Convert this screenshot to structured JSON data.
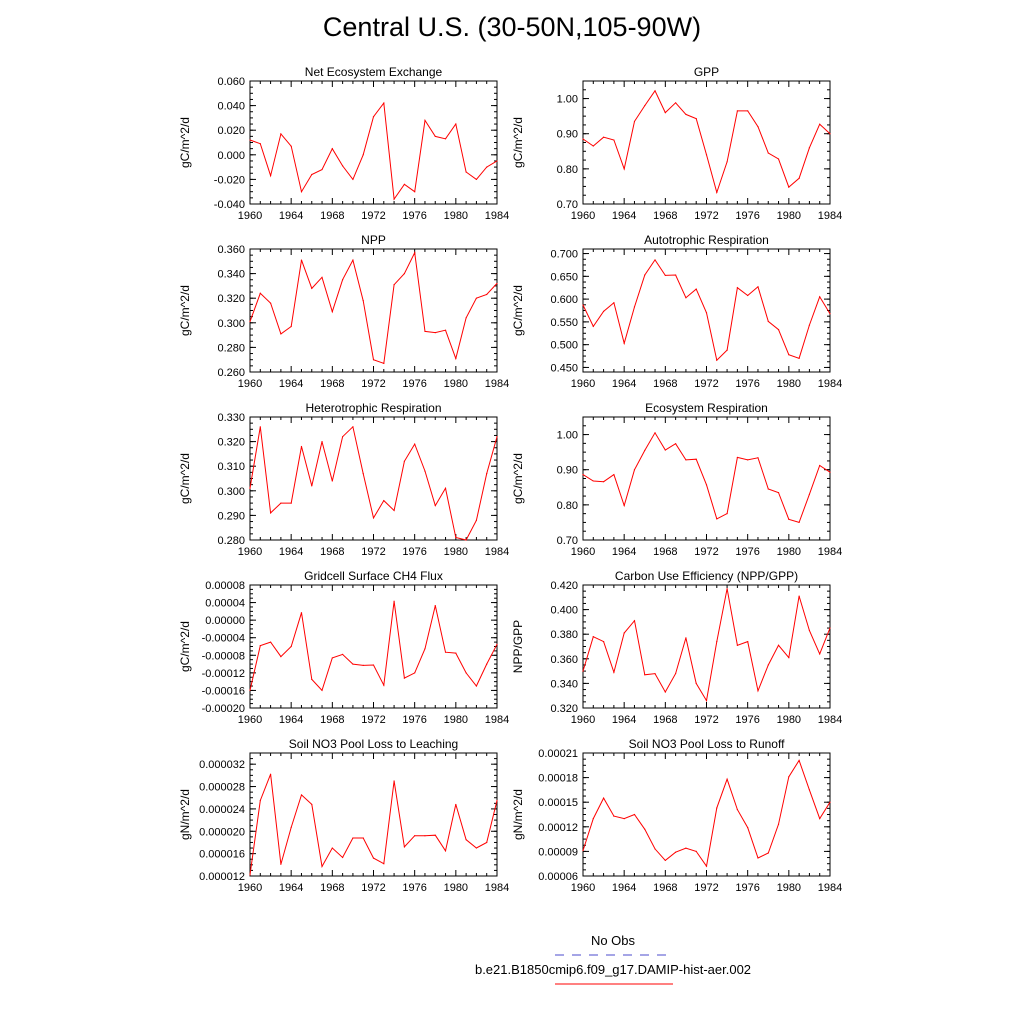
{
  "figure": {
    "title": "Central U.S. (30-50N,105-90W)",
    "line_color": "#ff0000",
    "obs_color": "#4b4bcc"
  },
  "legend": {
    "obs_label": "No Obs",
    "case_label": "b.e21.B1850cmip6.f09_g17.DAMIP-hist-aer.002"
  },
  "chart_data": [
    {
      "type": "line",
      "title": "Net Ecosystem Exchange",
      "ylabel": "gC/m^2/d",
      "xlim": [
        1960,
        1984
      ],
      "xticks": [
        "1960",
        "1964",
        "1968",
        "1972",
        "1976",
        "1980",
        "1984"
      ],
      "ylim": [
        -0.04,
        0.06
      ],
      "yticks": [
        "-0.040",
        "-0.020",
        "0.000",
        "0.020",
        "0.040",
        "0.060"
      ],
      "x": [
        1960,
        1961,
        1962,
        1963,
        1964,
        1965,
        1966,
        1967,
        1968,
        1969,
        1970,
        1971,
        1972,
        1973,
        1974,
        1975,
        1976,
        1977,
        1978,
        1979,
        1980,
        1981,
        1982,
        1983,
        1984
      ],
      "series": [
        {
          "values": [
            0.012,
            0.009,
            -0.017,
            0.017,
            0.007,
            -0.03,
            -0.016,
            -0.012,
            0.005,
            -0.009,
            -0.02,
            0.0,
            0.031,
            0.042,
            -0.036,
            -0.024,
            -0.03,
            0.028,
            0.015,
            0.013,
            0.025,
            -0.014,
            -0.02,
            -0.01,
            -0.005
          ]
        }
      ]
    },
    {
      "type": "line",
      "title": "GPP",
      "ylabel": "gC/m^2/d",
      "xlim": [
        1960,
        1984
      ],
      "xticks": [
        "1960",
        "1964",
        "1968",
        "1972",
        "1976",
        "1980",
        "1984"
      ],
      "ylim": [
        0.7,
        1.05
      ],
      "yticks": [
        "0.70",
        "0.80",
        "0.90",
        "1.00"
      ],
      "x": [
        1960,
        1961,
        1962,
        1963,
        1964,
        1965,
        1966,
        1967,
        1968,
        1969,
        1970,
        1971,
        1972,
        1973,
        1974,
        1975,
        1976,
        1977,
        1978,
        1979,
        1980,
        1981,
        1982,
        1983,
        1984
      ],
      "series": [
        {
          "values": [
            0.885,
            0.865,
            0.89,
            0.882,
            0.8,
            0.935,
            0.98,
            1.022,
            0.96,
            0.988,
            0.955,
            0.943,
            0.84,
            0.733,
            0.82,
            0.965,
            0.965,
            0.92,
            0.845,
            0.828,
            0.748,
            0.773,
            0.86,
            0.927,
            0.9
          ]
        }
      ]
    },
    {
      "type": "line",
      "title": "NPP",
      "ylabel": "gC/m^2/d",
      "xlim": [
        1960,
        1984
      ],
      "xticks": [
        "1960",
        "1964",
        "1968",
        "1972",
        "1976",
        "1980",
        "1984"
      ],
      "ylim": [
        0.26,
        0.36
      ],
      "yticks": [
        "0.260",
        "0.280",
        "0.300",
        "0.320",
        "0.340",
        "0.360"
      ],
      "x": [
        1960,
        1961,
        1962,
        1963,
        1964,
        1965,
        1966,
        1967,
        1968,
        1969,
        1970,
        1971,
        1972,
        1973,
        1974,
        1975,
        1976,
        1977,
        1978,
        1979,
        1980,
        1981,
        1982,
        1983,
        1984
      ],
      "series": [
        {
          "values": [
            0.301,
            0.324,
            0.316,
            0.291,
            0.297,
            0.351,
            0.328,
            0.337,
            0.309,
            0.335,
            0.351,
            0.318,
            0.27,
            0.267,
            0.331,
            0.34,
            0.357,
            0.293,
            0.292,
            0.294,
            0.271,
            0.304,
            0.32,
            0.323,
            0.332
          ]
        }
      ]
    },
    {
      "type": "line",
      "title": "Autotrophic Respiration",
      "ylabel": "gC/m^2/d",
      "xlim": [
        1960,
        1984
      ],
      "xticks": [
        "1960",
        "1964",
        "1968",
        "1972",
        "1976",
        "1980",
        "1984"
      ],
      "ylim": [
        0.44,
        0.71
      ],
      "yticks": [
        "0.450",
        "0.500",
        "0.550",
        "0.600",
        "0.650",
        "0.700"
      ],
      "x": [
        1960,
        1961,
        1962,
        1963,
        1964,
        1965,
        1966,
        1967,
        1968,
        1969,
        1970,
        1971,
        1972,
        1973,
        1974,
        1975,
        1976,
        1977,
        1978,
        1979,
        1980,
        1981,
        1982,
        1983,
        1984
      ],
      "series": [
        {
          "values": [
            0.587,
            0.54,
            0.573,
            0.592,
            0.503,
            0.583,
            0.653,
            0.686,
            0.652,
            0.653,
            0.603,
            0.622,
            0.57,
            0.466,
            0.488,
            0.625,
            0.608,
            0.627,
            0.551,
            0.533,
            0.478,
            0.47,
            0.543,
            0.605,
            0.568
          ]
        }
      ]
    },
    {
      "type": "line",
      "title": "Heterotrophic Respiration",
      "ylabel": "gC/m^2/d",
      "xlim": [
        1960,
        1984
      ],
      "xticks": [
        "1960",
        "1964",
        "1968",
        "1972",
        "1976",
        "1980",
        "1984"
      ],
      "ylim": [
        0.28,
        0.33
      ],
      "yticks": [
        "0.280",
        "0.290",
        "0.300",
        "0.310",
        "0.320",
        "0.330"
      ],
      "x": [
        1960,
        1961,
        1962,
        1963,
        1964,
        1965,
        1966,
        1967,
        1968,
        1969,
        1970,
        1971,
        1972,
        1973,
        1974,
        1975,
        1976,
        1977,
        1978,
        1979,
        1980,
        1981,
        1982,
        1983,
        1984
      ],
      "series": [
        {
          "values": [
            0.301,
            0.326,
            0.291,
            0.295,
            0.295,
            0.318,
            0.302,
            0.32,
            0.304,
            0.322,
            0.326,
            0.307,
            0.289,
            0.296,
            0.292,
            0.312,
            0.319,
            0.308,
            0.294,
            0.301,
            0.281,
            0.28,
            0.288,
            0.307,
            0.322
          ]
        }
      ]
    },
    {
      "type": "line",
      "title": "Ecosystem Respiration",
      "ylabel": "gC/m^2/d",
      "xlim": [
        1960,
        1984
      ],
      "xticks": [
        "1960",
        "1964",
        "1968",
        "1972",
        "1976",
        "1980",
        "1984"
      ],
      "ylim": [
        0.7,
        1.05
      ],
      "yticks": [
        "0.70",
        "0.80",
        "0.90",
        "1.00"
      ],
      "x": [
        1960,
        1961,
        1962,
        1963,
        1964,
        1965,
        1966,
        1967,
        1968,
        1969,
        1970,
        1971,
        1972,
        1973,
        1974,
        1975,
        1976,
        1977,
        1978,
        1979,
        1980,
        1981,
        1982,
        1983,
        1984
      ],
      "series": [
        {
          "values": [
            0.886,
            0.868,
            0.866,
            0.886,
            0.798,
            0.9,
            0.955,
            1.005,
            0.956,
            0.974,
            0.928,
            0.93,
            0.857,
            0.76,
            0.775,
            0.935,
            0.928,
            0.934,
            0.845,
            0.835,
            0.759,
            0.75,
            0.83,
            0.912,
            0.893
          ]
        }
      ]
    },
    {
      "type": "line",
      "title": "Gridcell Surface CH4 Flux",
      "ylabel": "gC/m^2/d",
      "xlim": [
        1960,
        1984
      ],
      "xticks": [
        "1960",
        "1964",
        "1968",
        "1972",
        "1976",
        "1980",
        "1984"
      ],
      "ylim": [
        -0.0002,
        8e-05
      ],
      "yticks": [
        "-0.00020",
        "-0.00016",
        "-0.00012",
        "-0.00008",
        "-0.00004",
        "0.00000",
        "0.00004",
        "0.00008"
      ],
      "x": [
        1960,
        1961,
        1962,
        1963,
        1964,
        1965,
        1966,
        1967,
        1968,
        1969,
        1970,
        1971,
        1972,
        1973,
        1974,
        1975,
        1976,
        1977,
        1978,
        1979,
        1980,
        1981,
        1982,
        1983,
        1984
      ],
      "series": [
        {
          "values": [
            -0.00016,
            -5.8e-05,
            -5e-05,
            -8.3e-05,
            -6e-05,
            1.7e-05,
            -0.000135,
            -0.00016,
            -8.6e-05,
            -7.8e-05,
            -0.0001,
            -0.000103,
            -0.000102,
            -0.000148,
            4.3e-05,
            -0.000132,
            -0.00012,
            -6.5e-05,
            3.3e-05,
            -7.3e-05,
            -7.5e-05,
            -0.00012,
            -0.00015,
            -0.0001,
            -5.5e-05
          ]
        }
      ]
    },
    {
      "type": "line",
      "title": "Carbon Use Efficiency (NPP/GPP)",
      "ylabel": "NPP/GPP",
      "xlim": [
        1960,
        1984
      ],
      "xticks": [
        "1960",
        "1964",
        "1968",
        "1972",
        "1976",
        "1980",
        "1984"
      ],
      "ylim": [
        0.32,
        0.42
      ],
      "yticks": [
        "0.320",
        "0.340",
        "0.360",
        "0.380",
        "0.400",
        "0.420"
      ],
      "x": [
        1960,
        1961,
        1962,
        1963,
        1964,
        1965,
        1966,
        1967,
        1968,
        1969,
        1970,
        1971,
        1972,
        1973,
        1974,
        1975,
        1976,
        1977,
        1978,
        1979,
        1980,
        1981,
        1982,
        1983,
        1984
      ],
      "series": [
        {
          "values": [
            0.35,
            0.378,
            0.374,
            0.349,
            0.381,
            0.391,
            0.347,
            0.348,
            0.333,
            0.348,
            0.377,
            0.34,
            0.326,
            0.374,
            0.417,
            0.371,
            0.374,
            0.334,
            0.355,
            0.371,
            0.361,
            0.411,
            0.383,
            0.364,
            0.385
          ]
        }
      ]
    },
    {
      "type": "line",
      "title": "Soil NO3 Pool Loss to Leaching",
      "ylabel": "gN/m^2/d",
      "xlim": [
        1960,
        1984
      ],
      "xticks": [
        "1960",
        "1964",
        "1968",
        "1972",
        "1976",
        "1980",
        "1984"
      ],
      "ylim": [
        1.2e-05,
        3.4e-05
      ],
      "yticks": [
        "0.000012",
        "0.000016",
        "0.000020",
        "0.000024",
        "0.000028",
        "0.000032"
      ],
      "x": [
        1960,
        1961,
        1962,
        1963,
        1964,
        1965,
        1966,
        1967,
        1968,
        1969,
        1970,
        1971,
        1972,
        1973,
        1974,
        1975,
        1976,
        1977,
        1978,
        1979,
        1980,
        1981,
        1982,
        1983,
        1984
      ],
      "series": [
        {
          "values": [
            1.22e-05,
            2.55e-05,
            3.02e-05,
            1.41e-05,
            2.07e-05,
            2.65e-05,
            2.48e-05,
            1.37e-05,
            1.7e-05,
            1.53e-05,
            1.88e-05,
            1.88e-05,
            1.52e-05,
            1.42e-05,
            2.9e-05,
            1.72e-05,
            1.92e-05,
            1.92e-05,
            1.93e-05,
            1.65e-05,
            2.48e-05,
            1.85e-05,
            1.7e-05,
            1.8e-05,
            2.55e-05
          ]
        }
      ]
    },
    {
      "type": "line",
      "title": "Soil NO3 Pool Loss to Runoff",
      "ylabel": "gN/m^2/d",
      "xlim": [
        1960,
        1984
      ],
      "xticks": [
        "1960",
        "1964",
        "1968",
        "1972",
        "1976",
        "1980",
        "1984"
      ],
      "ylim": [
        6e-05,
        0.00021
      ],
      "yticks": [
        "0.00006",
        "0.00009",
        "0.00012",
        "0.00015",
        "0.00018",
        "0.00021"
      ],
      "x": [
        1960,
        1961,
        1962,
        1963,
        1964,
        1965,
        1966,
        1967,
        1968,
        1969,
        1970,
        1971,
        1972,
        1973,
        1974,
        1975,
        1976,
        1977,
        1978,
        1979,
        1980,
        1981,
        1982,
        1983,
        1984
      ],
      "series": [
        {
          "values": [
            9.1e-05,
            0.00013,
            0.000155,
            0.000133,
            0.00013,
            0.000135,
            0.000117,
            9.3e-05,
            7.9e-05,
            8.9e-05,
            9.4e-05,
            9e-05,
            7.2e-05,
            0.000143,
            0.000178,
            0.000141,
            0.000119,
            8.2e-05,
            8.8e-05,
            0.000123,
            0.000181,
            0.000201,
            0.000165,
            0.00013,
            0.00015
          ]
        }
      ]
    }
  ]
}
